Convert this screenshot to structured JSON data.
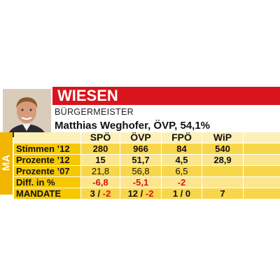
{
  "header": {
    "title": "WIESEN",
    "side_label": "MA",
    "role": "BÜRGERMEISTER",
    "mayor": "Matthias Weghofer, ÖVP, 54,1%"
  },
  "table": {
    "columns": [
      "SPÖ",
      "ÖVP",
      "FPÖ",
      "WiP"
    ],
    "rows": [
      {
        "label": "Stimmen ’12",
        "cells": [
          "280",
          "966",
          "84",
          "540"
        ]
      },
      {
        "label": "Prozente ’12",
        "cells": [
          "15",
          "51,7",
          "4,5",
          "28,9"
        ]
      },
      {
        "label": "Prozente ’07",
        "cells": [
          "21,8",
          "56,8",
          "6,5",
          null
        ]
      },
      {
        "label": "Diff. in %",
        "cells": [
          "-6,8",
          "-5,1",
          "-2",
          null
        ]
      },
      {
        "label": "MANDATE",
        "cells": [
          [
            "3 / ",
            "-2"
          ],
          [
            "12 / ",
            "-2"
          ],
          [
            "1 / 0"
          ],
          [
            "7"
          ]
        ]
      }
    ]
  }
}
